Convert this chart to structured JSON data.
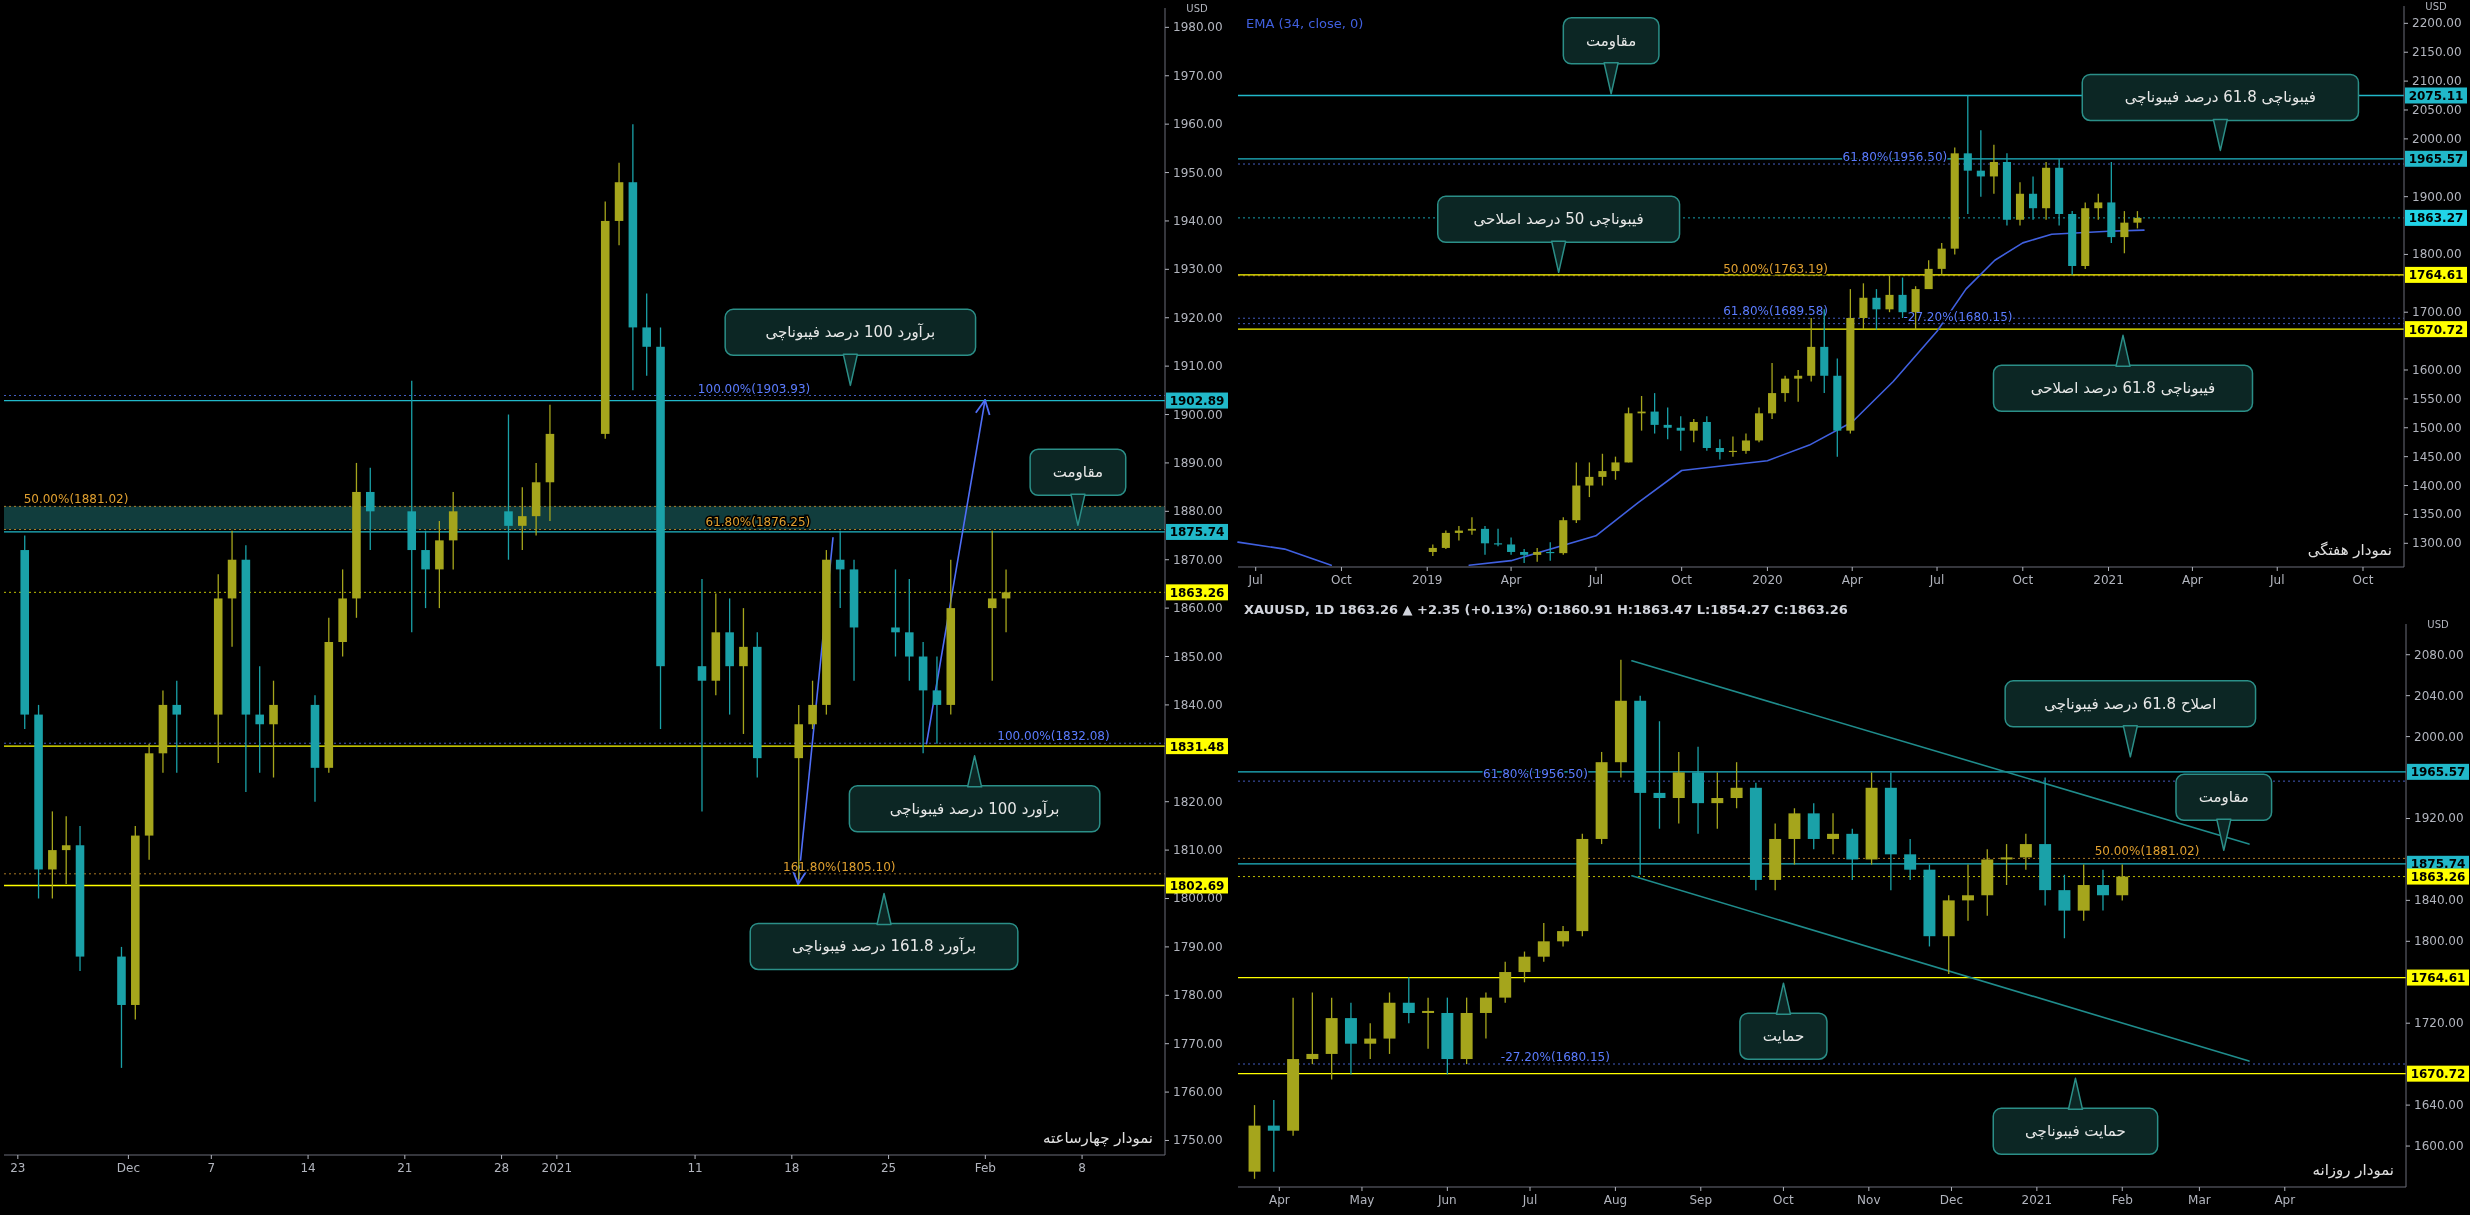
{
  "chart_data": [
    {
      "type": "candlestick",
      "title": "نمودار چهارساعته",
      "ylabel": "USD",
      "xlim": [
        "2020-11-22",
        "2021-02-14"
      ],
      "ylim": [
        1747,
        1984
      ],
      "xticks": [
        {
          "value": "2020-11-23",
          "label": "23"
        },
        {
          "value": "2020-12-01",
          "label": "Dec"
        },
        {
          "value": "2020-12-07",
          "label": "7"
        },
        {
          "value": "2020-12-14",
          "label": "14"
        },
        {
          "value": "2020-12-21",
          "label": "21"
        },
        {
          "value": "2020-12-28",
          "label": "28"
        },
        {
          "value": "2021-01-01",
          "label": "2021"
        },
        {
          "value": "2021-01-11",
          "label": "11"
        },
        {
          "value": "2021-01-18",
          "label": "18"
        },
        {
          "value": "2021-01-25",
          "label": "25"
        },
        {
          "value": "2021-02-01",
          "label": "Feb"
        },
        {
          "value": "2021-02-08",
          "label": "8"
        }
      ],
      "yticks": [
        {
          "value": 1750,
          "label": "1750.00"
        },
        {
          "value": 1760,
          "label": "1760.00"
        },
        {
          "value": 1770,
          "label": "1770.00"
        },
        {
          "value": 1780,
          "label": "1780.00"
        },
        {
          "value": 1790,
          "label": "1790.00"
        },
        {
          "value": 1800,
          "label": "1800.00"
        },
        {
          "value": 1810,
          "label": "1810.00"
        },
        {
          "value": 1820,
          "label": "1820.00"
        },
        {
          "value": 1840,
          "label": "1840.00"
        },
        {
          "value": 1850,
          "label": "1850.00"
        },
        {
          "value": 1860,
          "label": "1860.00"
        },
        {
          "value": 1870,
          "label": "1870.00"
        },
        {
          "value": 1880,
          "label": "1880.00"
        },
        {
          "value": 1890,
          "label": "1890.00"
        },
        {
          "value": 1900,
          "label": "1900.00"
        },
        {
          "value": 1910,
          "label": "1910.00"
        },
        {
          "value": 1920,
          "label": "1920.00"
        },
        {
          "value": 1930,
          "label": "1930.00"
        },
        {
          "value": 1940,
          "label": "1940.00"
        },
        {
          "value": 1950,
          "label": "1950.00"
        },
        {
          "value": 1960,
          "label": "1960.00"
        },
        {
          "value": 1970,
          "label": "1970.00"
        },
        {
          "value": 1980,
          "label": "1980.00"
        }
      ],
      "x": [
        "2020-11-23T12:00",
        "2020-11-24T12:00",
        "2020-11-25T12:00",
        "2020-11-26T12:00",
        "2020-11-27T12:00",
        "2020-11-30T12:00",
        "2020-12-01T12:00",
        "2020-12-02T12:00",
        "2020-12-03T12:00",
        "2020-12-04T12:00",
        "2020-12-07T12:00",
        "2020-12-08T12:00",
        "2020-12-09T12:00",
        "2020-12-10T12:00",
        "2020-12-11T12:00",
        "2020-12-14T12:00",
        "2020-12-15T12:00",
        "2020-12-16T12:00",
        "2020-12-17T12:00",
        "2020-12-18T12:00",
        "2020-12-21T12:00",
        "2020-12-22T12:00",
        "2020-12-23T12:00",
        "2020-12-24T12:00",
        "2020-12-28T12:00",
        "2020-12-29T12:00",
        "2020-12-30T12:00",
        "2020-12-31T12:00",
        "2021-01-04T12:00",
        "2021-01-05T12:00",
        "2021-01-06T12:00",
        "2021-01-07T12:00",
        "2021-01-08T12:00",
        "2021-01-11T12:00",
        "2021-01-12T12:00",
        "2021-01-13T12:00",
        "2021-01-14T12:00",
        "2021-01-15T12:00",
        "2021-01-18T12:00",
        "2021-01-19T12:00",
        "2021-01-20T12:00",
        "2021-01-21T12:00",
        "2021-01-22T12:00",
        "2021-01-25T12:00",
        "2021-01-26T12:00",
        "2021-01-27T12:00",
        "2021-01-28T12:00",
        "2021-01-29T12:00",
        "2021-02-01T12:00",
        "2021-02-02T12:00"
      ],
      "ohlc": [
        [
          1872,
          1875,
          1835,
          1838
        ],
        [
          1838,
          1840,
          1800,
          1806
        ],
        [
          1806,
          1818,
          1800,
          1810
        ],
        [
          1810,
          1817,
          1803,
          1811
        ],
        [
          1811,
          1815,
          1785,
          1788
        ],
        [
          1788,
          1790,
          1765,
          1778
        ],
        [
          1778,
          1815,
          1775,
          1813
        ],
        [
          1813,
          1832,
          1808,
          1830
        ],
        [
          1830,
          1843,
          1826,
          1840
        ],
        [
          1840,
          1845,
          1826,
          1838
        ],
        [
          1838,
          1867,
          1828,
          1862
        ],
        [
          1862,
          1876,
          1852,
          1870
        ],
        [
          1870,
          1873,
          1822,
          1838
        ],
        [
          1838,
          1848,
          1826,
          1836
        ],
        [
          1836,
          1845,
          1825,
          1840
        ],
        [
          1840,
          1842,
          1820,
          1827
        ],
        [
          1827,
          1858,
          1826,
          1853
        ],
        [
          1853,
          1868,
          1850,
          1862
        ],
        [
          1862,
          1890,
          1858,
          1884
        ],
        [
          1884,
          1889,
          1872,
          1880
        ],
        [
          1880,
          1907,
          1855,
          1872
        ],
        [
          1872,
          1876,
          1860,
          1868
        ],
        [
          1868,
          1878,
          1860,
          1874
        ],
        [
          1874,
          1884,
          1868,
          1880
        ],
        [
          1880,
          1900,
          1870,
          1877
        ],
        [
          1877,
          1885,
          1872,
          1879
        ],
        [
          1879,
          1890,
          1875,
          1886
        ],
        [
          1886,
          1902,
          1878,
          1896
        ],
        [
          1896,
          1944,
          1895,
          1940
        ],
        [
          1940,
          1952,
          1935,
          1948
        ],
        [
          1948,
          1960,
          1905,
          1918
        ],
        [
          1918,
          1925,
          1908,
          1914
        ],
        [
          1914,
          1918,
          1835,
          1848
        ],
        [
          1848,
          1866,
          1818,
          1845
        ],
        [
          1845,
          1863,
          1842,
          1855
        ],
        [
          1855,
          1862,
          1838,
          1848
        ],
        [
          1848,
          1860,
          1834,
          1852
        ],
        [
          1852,
          1855,
          1825,
          1829
        ],
        [
          1829,
          1840,
          1804,
          1836
        ],
        [
          1836,
          1845,
          1835,
          1840
        ],
        [
          1840,
          1872,
          1838,
          1870
        ],
        [
          1870,
          1876,
          1860,
          1868
        ],
        [
          1868,
          1870,
          1845,
          1856
        ],
        [
          1856,
          1868,
          1850,
          1855
        ],
        [
          1855,
          1866,
          1845,
          1850
        ],
        [
          1850,
          1853,
          1830,
          1843
        ],
        [
          1843,
          1850,
          1832,
          1840
        ],
        [
          1840,
          1870,
          1838,
          1860
        ],
        [
          1860,
          1876,
          1845,
          1862
        ],
        [
          1862,
          1868,
          1855,
          1863.26
        ]
      ],
      "colors": [
        "#1aa1a8",
        "#1aa1a8",
        "#a5a51c",
        "#a5a51c",
        "#1aa1a8",
        "#1aa1a8",
        "#a5a51c",
        "#a5a51c",
        "#a5a51c",
        "#1aa1a8",
        "#a5a51c",
        "#a5a51c",
        "#1aa1a8",
        "#1aa1a8",
        "#a5a51c",
        "#1aa1a8",
        "#a5a51c",
        "#a5a51c",
        "#a5a51c",
        "#1aa1a8",
        "#1aa1a8",
        "#1aa1a8",
        "#a5a51c",
        "#a5a51c",
        "#1aa1a8",
        "#a5a51c",
        "#a5a51c",
        "#a5a51c",
        "#a5a51c",
        "#a5a51c",
        "#1aa1a8",
        "#1aa1a8",
        "#1aa1a8",
        "#1aa1a8",
        "#a5a51c",
        "#1aa1a8",
        "#a5a51c",
        "#1aa1a8",
        "#a5a51c",
        "#a5a51c",
        "#a5a51c",
        "#1aa1a8",
        "#1aa1a8",
        "#1aa1a8",
        "#1aa1a8",
        "#1aa1a8",
        "#1aa1a8",
        "#a5a51c",
        "#a5a51c",
        "#a5a51c"
      ],
      "bands": [
        {
          "axis": "y",
          "from": 1876.25,
          "to": 1881.02,
          "color": "#1f6f70"
        }
      ],
      "ref_lines": [
        {
          "axis": "y",
          "value": 1902.89,
          "label": "1902.89",
          "color": "#21b8c9"
        },
        {
          "axis": "y",
          "value": 1875.74,
          "label": "1875.74",
          "color": "#21b8c9"
        },
        {
          "axis": "y",
          "value": 1863.26,
          "label": "1863.26",
          "color": "#ffff00",
          "line_style": "dotted"
        },
        {
          "axis": "y",
          "value": 1831.48,
          "label": "1831.48",
          "color": "#ffff00"
        },
        {
          "axis": "y",
          "value": 1802.69,
          "label": "1802.69",
          "color": "#ffff00"
        },
        {
          "axis": "y",
          "value": 1903.93,
          "color": "#5b7cff",
          "line_style": "dotted"
        },
        {
          "axis": "y",
          "value": 1881.02,
          "color": "#e0a030",
          "line_style": "dotted"
        },
        {
          "axis": "y",
          "value": 1876.25,
          "color": "#e0a030",
          "line_style": "dotted"
        },
        {
          "axis": "y",
          "value": 1832.08,
          "color": "#5b7cff",
          "line_style": "dotted"
        },
        {
          "axis": "y",
          "value": 1805.1,
          "color": "#e0a030",
          "line_style": "dotted"
        }
      ],
      "annotations": [
        {
          "text": "100.00%(1903.93)",
          "x": "2021-01-19T08:00",
          "y": 1903.93
        },
        {
          "text": "50.00%(1881.02)",
          "x": "2020-12-01T00:00",
          "y": 1881.02
        },
        {
          "text": "61.80%(1876.25)",
          "x": "2021-01-19T08:00",
          "y": 1876.25
        },
        {
          "text": "100.00%(1832.08)",
          "x": "2021-02-10T00:00",
          "y": 1832.08
        },
        {
          "text": "161.80%(1805.10)",
          "x": "2021-01-25T12:00",
          "y": 1805.1
        },
        "برآورد 100 درصد فیبوناچی",
        "مقاومت",
        "برآورد 100 درصد فیبوناچی",
        "برآورد 161.8 درصد فیبوناچی"
      ]
    },
    {
      "type": "candlestick",
      "title": "نمودار هفتگی",
      "ylabel": "USD",
      "legend": "top left",
      "xlim": [
        "2018-06-12",
        "2021-11-14"
      ],
      "ylim": [
        1259,
        2230
      ],
      "xticks": [
        {
          "value": "2018-07-01",
          "label": "Jul"
        },
        {
          "value": "2018-10-01",
          "label": "Oct"
        },
        {
          "value": "2019-01-01",
          "label": "2019"
        },
        {
          "value": "2019-04-01",
          "label": "Apr"
        },
        {
          "value": "2019-07-01",
          "label": "Jul"
        },
        {
          "value": "2019-10-01",
          "label": "Oct"
        },
        {
          "value": "2020-01-01",
          "label": "2020"
        },
        {
          "value": "2020-04-01",
          "label": "Apr"
        },
        {
          "value": "2020-07-01",
          "label": "Jul"
        },
        {
          "value": "2020-10-01",
          "label": "Oct"
        },
        {
          "value": "2021-01-01",
          "label": "2021"
        },
        {
          "value": "2021-04-01",
          "label": "Apr"
        },
        {
          "value": "2021-07-01",
          "label": "Jul"
        },
        {
          "value": "2021-10-01",
          "label": "Oct"
        }
      ],
      "yticks": [
        {
          "value": 1300,
          "label": "1300.00"
        },
        {
          "value": 1350,
          "label": "1350.00"
        },
        {
          "value": 1400,
          "label": "1400.00"
        },
        {
          "value": 1450,
          "label": "1450.00"
        },
        {
          "value": 1500,
          "label": "1500.00"
        },
        {
          "value": 1550,
          "label": "1550.00"
        },
        {
          "value": 1600,
          "label": "1600.00"
        },
        {
          "value": 1700,
          "label": "1700.00"
        },
        {
          "value": 1800,
          "label": "1800.00"
        },
        {
          "value": 1900,
          "label": "1900.00"
        },
        {
          "value": 2000,
          "label": "2000.00"
        },
        {
          "value": 2050,
          "label": "2050.00"
        },
        {
          "value": 2100,
          "label": "2100.00"
        },
        {
          "value": 2150,
          "label": "2150.00"
        },
        {
          "value": 2200,
          "label": "2200.00"
        }
      ],
      "x": [
        "2019-01-07",
        "2019-01-21",
        "2019-02-04",
        "2019-02-18",
        "2019-03-04",
        "2019-03-18",
        "2019-04-01",
        "2019-04-15",
        "2019-04-29",
        "2019-05-13",
        "2019-05-27",
        "2019-06-10",
        "2019-06-24",
        "2019-07-08",
        "2019-07-22",
        "2019-08-05",
        "2019-08-19",
        "2019-09-02",
        "2019-09-16",
        "2019-09-30",
        "2019-10-14",
        "2019-10-28",
        "2019-11-11",
        "2019-11-25",
        "2019-12-09",
        "2019-12-23",
        "2020-01-06",
        "2020-01-20",
        "2020-02-03",
        "2020-02-17",
        "2020-03-02",
        "2020-03-16",
        "2020-03-30",
        "2020-04-13",
        "2020-04-27",
        "2020-05-11",
        "2020-05-25",
        "2020-06-08",
        "2020-06-22",
        "2020-07-06",
        "2020-07-20",
        "2020-08-03",
        "2020-08-17",
        "2020-08-31",
        "2020-09-14",
        "2020-09-28",
        "2020-10-12",
        "2020-10-26",
        "2020-11-09",
        "2020-11-23",
        "2020-12-07",
        "2020-12-21",
        "2021-01-04",
        "2021-01-18",
        "2021-02-01"
      ],
      "ohlc": [
        [
          1285,
          1298,
          1278,
          1292
        ],
        [
          1292,
          1322,
          1290,
          1318
        ],
        [
          1318,
          1330,
          1305,
          1322
        ],
        [
          1322,
          1345,
          1315,
          1325
        ],
        [
          1325,
          1330,
          1280,
          1300
        ],
        [
          1300,
          1325,
          1295,
          1298
        ],
        [
          1298,
          1310,
          1280,
          1285
        ],
        [
          1285,
          1290,
          1266,
          1280
        ],
        [
          1280,
          1292,
          1268,
          1285
        ],
        [
          1285,
          1302,
          1270,
          1283
        ],
        [
          1283,
          1345,
          1280,
          1340
        ],
        [
          1340,
          1440,
          1335,
          1400
        ],
        [
          1400,
          1440,
          1380,
          1415
        ],
        [
          1415,
          1455,
          1400,
          1425
        ],
        [
          1425,
          1450,
          1410,
          1440
        ],
        [
          1440,
          1535,
          1440,
          1525
        ],
        [
          1525,
          1555,
          1495,
          1528
        ],
        [
          1528,
          1560,
          1490,
          1505
        ],
        [
          1505,
          1535,
          1480,
          1500
        ],
        [
          1500,
          1520,
          1460,
          1495
        ],
        [
          1495,
          1515,
          1475,
          1510
        ],
        [
          1510,
          1520,
          1460,
          1465
        ],
        [
          1465,
          1480,
          1445,
          1458
        ],
        [
          1458,
          1485,
          1450,
          1460
        ],
        [
          1460,
          1490,
          1455,
          1478
        ],
        [
          1478,
          1535,
          1475,
          1525
        ],
        [
          1525,
          1612,
          1515,
          1560
        ],
        [
          1560,
          1590,
          1545,
          1585
        ],
        [
          1585,
          1600,
          1545,
          1590
        ],
        [
          1590,
          1690,
          1580,
          1640
        ],
        [
          1640,
          1705,
          1560,
          1590
        ],
        [
          1590,
          1620,
          1450,
          1495
        ],
        [
          1495,
          1740,
          1490,
          1690
        ],
        [
          1690,
          1750,
          1670,
          1725
        ],
        [
          1725,
          1740,
          1670,
          1705
        ],
        [
          1705,
          1765,
          1700,
          1730
        ],
        [
          1730,
          1760,
          1690,
          1700
        ],
        [
          1700,
          1745,
          1670,
          1740
        ],
        [
          1740,
          1790,
          1740,
          1775
        ],
        [
          1775,
          1820,
          1765,
          1810
        ],
        [
          1810,
          1985,
          1800,
          1975
        ],
        [
          1975,
          2075,
          1870,
          1945
        ],
        [
          1945,
          2015,
          1900,
          1935
        ],
        [
          1935,
          1990,
          1905,
          1960
        ],
        [
          1960,
          1975,
          1850,
          1860
        ],
        [
          1860,
          1925,
          1850,
          1905
        ],
        [
          1905,
          1935,
          1860,
          1880
        ],
        [
          1880,
          1960,
          1860,
          1950
        ],
        [
          1950,
          1965,
          1850,
          1870
        ],
        [
          1870,
          1875,
          1765,
          1780
        ],
        [
          1780,
          1890,
          1775,
          1880
        ],
        [
          1880,
          1905,
          1860,
          1890
        ],
        [
          1890,
          1960,
          1820,
          1830
        ],
        [
          1830,
          1875,
          1802,
          1855
        ],
        [
          1855,
          1875,
          1845,
          1863.27
        ]
      ],
      "colors": [
        "#a5a51c",
        "#a5a51c",
        "#a5a51c",
        "#a5a51c",
        "#1aa1a8",
        "#1aa1a8",
        "#1aa1a8",
        "#1aa1a8",
        "#a5a51c",
        "#1aa1a8",
        "#a5a51c",
        "#a5a51c",
        "#a5a51c",
        "#a5a51c",
        "#a5a51c",
        "#a5a51c",
        "#a5a51c",
        "#1aa1a8",
        "#1aa1a8",
        "#1aa1a8",
        "#a5a51c",
        "#1aa1a8",
        "#1aa1a8",
        "#a5a51c",
        "#a5a51c",
        "#a5a51c",
        "#a5a51c",
        "#a5a51c",
        "#a5a51c",
        "#a5a51c",
        "#1aa1a8",
        "#1aa1a8",
        "#a5a51c",
        "#a5a51c",
        "#1aa1a8",
        "#a5a51c",
        "#1aa1a8",
        "#a5a51c",
        "#a5a51c",
        "#a5a51c",
        "#a5a51c",
        "#1aa1a8",
        "#1aa1a8",
        "#a5a51c",
        "#1aa1a8",
        "#a5a51c",
        "#1aa1a8",
        "#a5a51c",
        "#1aa1a8",
        "#1aa1a8",
        "#a5a51c",
        "#a5a51c",
        "#1aa1a8",
        "#a5a51c",
        "#a5a51c"
      ],
      "series": [
        {
          "type": "line",
          "name": "EMA (34, close, 0)",
          "color": "#4060e0",
          "x": [
            "2018-06-12",
            "2018-08-01",
            "2018-09-20",
            "2018-11-15",
            "2019-02-15",
            "2019-04-01",
            "2019-07-01",
            "2019-08-15",
            "2019-10-01",
            "2020-01-01",
            "2020-02-15",
            "2020-04-01",
            "2020-05-15",
            "2020-07-01",
            "2020-08-01",
            "2020-09-01",
            "2020-10-01",
            "2020-11-01",
            "2021-01-01",
            "2021-02-08"
          ],
          "values": [
            1302,
            1290,
            1262,
            null,
            1262,
            1270,
            1313,
            1370,
            1426,
            1443,
            1470,
            1510,
            1580,
            1667,
            1740,
            1790,
            1820,
            1835,
            1840,
            1842
          ]
        }
      ],
      "ref_lines": [
        {
          "axis": "y",
          "value": 2075.11,
          "label": "2075.11",
          "color": "#21b8c9"
        },
        {
          "axis": "y",
          "value": 1965.57,
          "label": "1965.57",
          "color": "#21b8c9"
        },
        {
          "axis": "y",
          "value": 1863.27,
          "label": "1863.27",
          "color": "#21d4e8",
          "line_style": "dotted"
        },
        {
          "axis": "y",
          "value": 1764.61,
          "label": "1764.61",
          "color": "#ffff00"
        },
        {
          "axis": "y",
          "value": 1670.72,
          "label": "1670.72",
          "color": "#ffff00"
        },
        {
          "axis": "y",
          "value": 1956.5,
          "color": "#5b7cff",
          "line_style": "dotted"
        },
        {
          "axis": "y",
          "value": 1763.19,
          "color": "#e0a030",
          "line_style": "dotted"
        },
        {
          "axis": "y",
          "value": 1689.58,
          "color": "#5b7cff",
          "line_style": "dotted"
        },
        {
          "axis": "y",
          "value": 1680.15,
          "color": "#5b7cff",
          "line_style": "dotted"
        }
      ],
      "annotations": [
        {
          "text": "61.80%(1956.50)",
          "x": "2020-07-12",
          "y": 1956.5
        },
        {
          "text": "50.00%(1763.19)",
          "x": "2020-03-06",
          "y": 1763.19
        },
        {
          "text": "61.80%(1689.58)",
          "x": "2020-03-06",
          "y": 1689.58
        },
        {
          "text": "-27.20%(1680.15)",
          "x": "2020-09-20",
          "y": 1680.15
        },
        "مقاومت",
        "فیبوناچی 61.8 درصد فیبوناچی",
        "فیبوناچی 50 درصد اصلاحی",
        "فیبوناچی 61.8 درصد اصلاحی"
      ]
    },
    {
      "type": "candlestick",
      "title": "نمودار روزانه",
      "subtitle": "XAUUSD, 1D  1863.26 ▲ +2.35 (+0.13%)  O:1860.91  H:1863.47  L:1854.27  C:1863.26",
      "ylabel": "USD",
      "xlim": [
        "2020-03-17",
        "2021-05-15"
      ],
      "ylim": [
        1560,
        2110
      ],
      "xticks": [
        {
          "value": "2020-04-01",
          "label": "Apr"
        },
        {
          "value": "2020-05-01",
          "label": "May"
        },
        {
          "value": "2020-06-01",
          "label": "Jun"
        },
        {
          "value": "2020-07-01",
          "label": "Jul"
        },
        {
          "value": "2020-08-01",
          "label": "Aug"
        },
        {
          "value": "2020-09-01",
          "label": "Sep"
        },
        {
          "value": "2020-10-01",
          "label": "Oct"
        },
        {
          "value": "2020-11-01",
          "label": "Nov"
        },
        {
          "value": "2020-12-01",
          "label": "Dec"
        },
        {
          "value": "2021-01-01",
          "label": "2021"
        },
        {
          "value": "2021-02-01",
          "label": "Feb"
        },
        {
          "value": "2021-03-01",
          "label": "Mar"
        },
        {
          "value": "2021-04-01",
          "label": "Apr"
        }
      ],
      "yticks": [
        {
          "value": 1600,
          "label": "1600.00"
        },
        {
          "value": 1640,
          "label": "1640.00"
        },
        {
          "value": 1720,
          "label": "1720.00"
        },
        {
          "value": 1800,
          "label": "1800.00"
        },
        {
          "value": 1840,
          "label": "1840.00"
        },
        {
          "value": 1920,
          "label": "1920.00"
        },
        {
          "value": 2000,
          "label": "2000.00"
        },
        {
          "value": 2040,
          "label": "2040.00"
        },
        {
          "value": 2080,
          "label": "2080.00"
        }
      ],
      "x": [
        "2020-03-23",
        "2020-03-30",
        "2020-04-06",
        "2020-04-13",
        "2020-04-20",
        "2020-04-27",
        "2020-05-04",
        "2020-05-11",
        "2020-05-18",
        "2020-05-25",
        "2020-06-01",
        "2020-06-08",
        "2020-06-15",
        "2020-06-22",
        "2020-06-29",
        "2020-07-06",
        "2020-07-13",
        "2020-07-20",
        "2020-07-27",
        "2020-08-03",
        "2020-08-10",
        "2020-08-17",
        "2020-08-24",
        "2020-08-31",
        "2020-09-07",
        "2020-09-14",
        "2020-09-21",
        "2020-09-28",
        "2020-10-05",
        "2020-10-12",
        "2020-10-19",
        "2020-10-26",
        "2020-11-02",
        "2020-11-09",
        "2020-11-16",
        "2020-11-23",
        "2020-11-30",
        "2020-12-07",
        "2020-12-14",
        "2020-12-21",
        "2020-12-28",
        "2021-01-04",
        "2021-01-11",
        "2021-01-18",
        "2021-01-25",
        "2021-02-01"
      ],
      "ohlc": [
        [
          1575,
          1640,
          1568,
          1620
        ],
        [
          1620,
          1645,
          1575,
          1615
        ],
        [
          1615,
          1745,
          1610,
          1685
        ],
        [
          1685,
          1750,
          1680,
          1690
        ],
        [
          1690,
          1745,
          1665,
          1725
        ],
        [
          1725,
          1740,
          1670,
          1700
        ],
        [
          1700,
          1720,
          1685,
          1705
        ],
        [
          1705,
          1750,
          1690,
          1740
        ],
        [
          1740,
          1765,
          1720,
          1730
        ],
        [
          1730,
          1745,
          1695,
          1732
        ],
        [
          1730,
          1745,
          1670,
          1685
        ],
        [
          1685,
          1745,
          1680,
          1730
        ],
        [
          1730,
          1750,
          1705,
          1745
        ],
        [
          1745,
          1780,
          1740,
          1770
        ],
        [
          1770,
          1790,
          1760,
          1785
        ],
        [
          1785,
          1818,
          1780,
          1800
        ],
        [
          1800,
          1815,
          1795,
          1810
        ],
        [
          1810,
          1905,
          1805,
          1900
        ],
        [
          1900,
          1985,
          1895,
          1975
        ],
        [
          1975,
          2075,
          1960,
          2035
        ],
        [
          2035,
          2040,
          1865,
          1945
        ],
        [
          1945,
          2015,
          1910,
          1940
        ],
        [
          1940,
          1985,
          1915,
          1965
        ],
        [
          1965,
          1990,
          1905,
          1935
        ],
        [
          1935,
          1965,
          1910,
          1940
        ],
        [
          1940,
          1975,
          1930,
          1950
        ],
        [
          1950,
          1955,
          1850,
          1860
        ],
        [
          1860,
          1915,
          1850,
          1900
        ],
        [
          1900,
          1930,
          1875,
          1925
        ],
        [
          1925,
          1935,
          1890,
          1900
        ],
        [
          1900,
          1925,
          1885,
          1905
        ],
        [
          1905,
          1910,
          1860,
          1880
        ],
        [
          1880,
          1965,
          1875,
          1950
        ],
        [
          1950,
          1965,
          1850,
          1885
        ],
        [
          1885,
          1900,
          1860,
          1870
        ],
        [
          1870,
          1875,
          1795,
          1805
        ],
        [
          1805,
          1845,
          1768,
          1840
        ],
        [
          1840,
          1875,
          1820,
          1845
        ],
        [
          1845,
          1890,
          1825,
          1880
        ],
        [
          1880,
          1895,
          1855,
          1882
        ],
        [
          1882,
          1905,
          1870,
          1895
        ],
        [
          1895,
          1960,
          1835,
          1850
        ],
        [
          1850,
          1865,
          1803,
          1830
        ],
        [
          1830,
          1875,
          1820,
          1855
        ],
        [
          1855,
          1870,
          1830,
          1845
        ],
        [
          1845,
          1875,
          1840,
          1863.26
        ]
      ],
      "colors": [
        "#a5a51c",
        "#1aa1a8",
        "#a5a51c",
        "#a5a51c",
        "#a5a51c",
        "#1aa1a8",
        "#a5a51c",
        "#a5a51c",
        "#1aa1a8",
        "#a5a51c",
        "#1aa1a8",
        "#a5a51c",
        "#a5a51c",
        "#a5a51c",
        "#a5a51c",
        "#a5a51c",
        "#a5a51c",
        "#a5a51c",
        "#a5a51c",
        "#a5a51c",
        "#1aa1a8",
        "#1aa1a8",
        "#a5a51c",
        "#1aa1a8",
        "#a5a51c",
        "#a5a51c",
        "#1aa1a8",
        "#a5a51c",
        "#a5a51c",
        "#1aa1a8",
        "#a5a51c",
        "#1aa1a8",
        "#a5a51c",
        "#1aa1a8",
        "#1aa1a8",
        "#1aa1a8",
        "#a5a51c",
        "#a5a51c",
        "#a5a51c",
        "#a5a51c",
        "#a5a51c",
        "#1aa1a8",
        "#1aa1a8",
        "#a5a51c",
        "#1aa1a8",
        "#a5a51c"
      ],
      "series": [
        {
          "type": "line",
          "x": [
            "2020-08-07",
            "2021-03-19"
          ],
          "values": [
            2074,
            1895
          ],
          "color": "#1f8c8c"
        },
        {
          "type": "line",
          "x": [
            "2020-08-07",
            "2021-03-19"
          ],
          "values": [
            1864,
            1683
          ],
          "color": "#1f8c8c"
        }
      ],
      "ref_lines": [
        {
          "axis": "y",
          "value": 1965.57,
          "label": "1965.57",
          "color": "#21b8c9"
        },
        {
          "axis": "y",
          "value": 1875.74,
          "label": "1875.74",
          "color": "#21b8c9"
        },
        {
          "axis": "y",
          "value": 1863.26,
          "label": "1863.26",
          "color": "#ffff00",
          "line_style": "dotted"
        },
        {
          "axis": "y",
          "value": 1764.61,
          "label": "1764.61",
          "color": "#ffff00"
        },
        {
          "axis": "y",
          "value": 1670.72,
          "label": "1670.72",
          "color": "#ffff00"
        },
        {
          "axis": "y",
          "value": 1956.5,
          "color": "#5b7cff",
          "line_style": "dotted"
        },
        {
          "axis": "y",
          "value": 1881.02,
          "color": "#e0a030",
          "line_style": "dotted"
        },
        {
          "axis": "y",
          "value": 1680.15,
          "color": "#5b7cff",
          "line_style": "dotted"
        }
      ],
      "annotations": [
        {
          "text": "61.80%(1956.50)",
          "x": "2020-07-22",
          "y": 1956.5
        },
        {
          "text": "50.00%(1881.02)",
          "x": "2021-03-01",
          "y": 1881.02
        },
        {
          "text": "-27.20%(1680.15)",
          "x": "2020-07-30",
          "y": 1680.15
        },
        "اصلاح 61.8 درصد فیبوناچی",
        "مقاومت",
        "حمایت",
        "حمایت فیبوناچی"
      ]
    }
  ]
}
